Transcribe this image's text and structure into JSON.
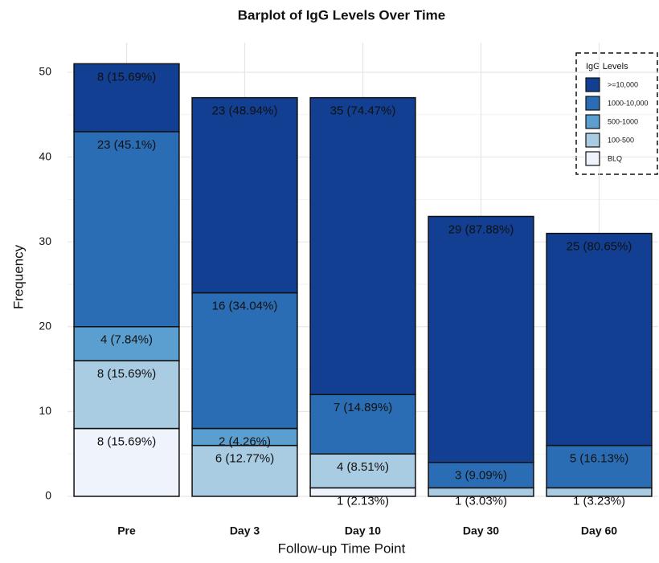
{
  "chart_data": {
    "type": "stacked-bar",
    "title": "Barplot of IgG Levels Over Time",
    "x_label": "Follow-up Time Point",
    "y_label": "Frequency",
    "categories": [
      "Pre",
      "Day 3",
      "Day 10",
      "Day 30",
      "Day 60"
    ],
    "series": [
      {
        "name": "BLQ",
        "color": "#eef3fc",
        "values": [
          8,
          0,
          1,
          0,
          0
        ],
        "value_labels": [
          "8 (15.69%)",
          null,
          "1 (2.13%)",
          null,
          null
        ]
      },
      {
        "name": "100-500",
        "color": "#a9cce3",
        "values": [
          8,
          6,
          4,
          1,
          1
        ],
        "value_labels": [
          "8 (15.69%)",
          "6 (12.77%)",
          "4 (8.51%)",
          "1 (3.03%)",
          "1 (3.23%)"
        ]
      },
      {
        "name": "500-1000",
        "color": "#5a9fd0",
        "values": [
          4,
          2,
          0,
          0,
          0
        ],
        "value_labels": [
          "4 (7.84%)",
          "2 (4.26%)",
          null,
          null,
          null
        ]
      },
      {
        "name": "1000-10,000",
        "color": "#2a6db4",
        "values": [
          23,
          16,
          7,
          3,
          5
        ],
        "value_labels": [
          "23 (45.1%)",
          "16 (34.04%)",
          "7 (14.89%)",
          "3 (9.09%)",
          "5 (16.13%)"
        ]
      },
      {
        "name": ">=10,000",
        "color": "#123f91",
        "values": [
          8,
          23,
          35,
          29,
          25
        ],
        "value_labels": [
          "8 (15.69%)",
          "23 (48.94%)",
          "35 (74.47%)",
          "29 (87.88%)",
          "25 (80.65%)"
        ]
      }
    ],
    "legend_title": "IgG Levels",
    "legend_position": "top-right",
    "ylim": [
      0,
      53.5
    ],
    "yticks": [
      0,
      10,
      20,
      30,
      40,
      50
    ],
    "grid": true
  }
}
